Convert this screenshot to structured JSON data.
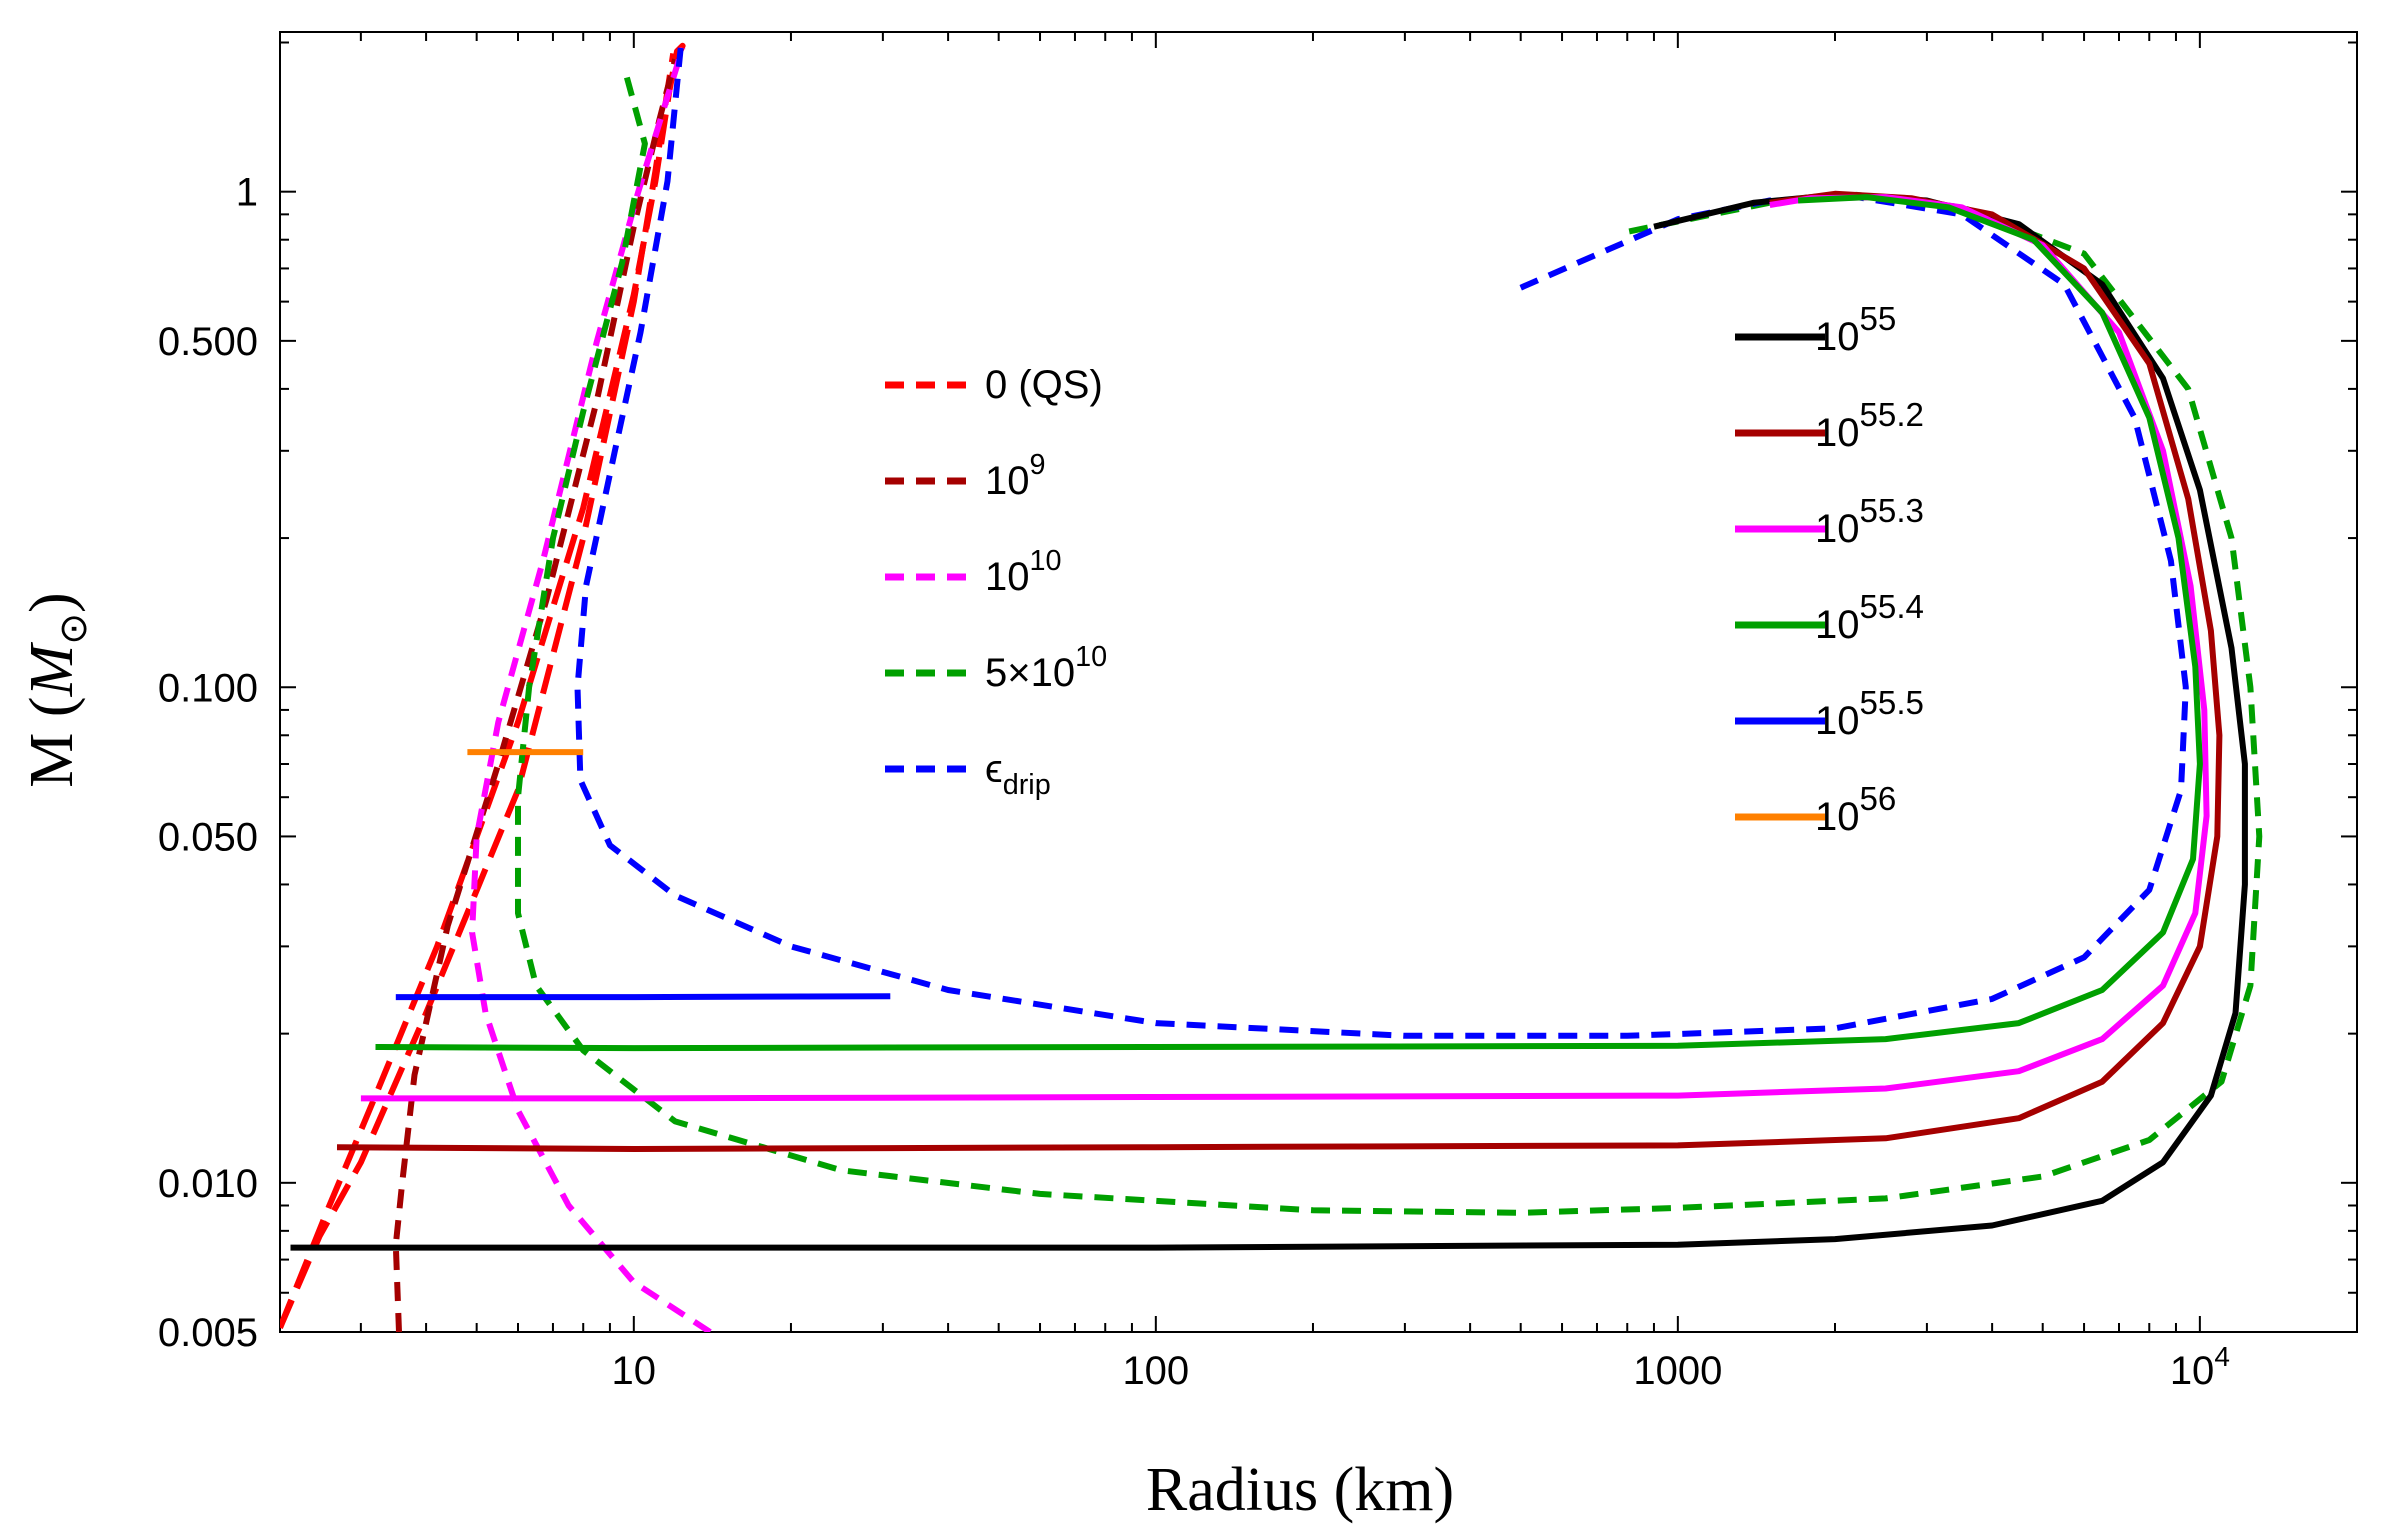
{
  "chart_data": {
    "type": "line",
    "title": "",
    "xlabel": "Radius (km)",
    "ylabel": "M",
    "ylabel_symbol": "M",
    "ylabel_subscript": "⊙",
    "xscale": "log",
    "yscale": "log",
    "xlim": [
      2.1,
      20000
    ],
    "ylim": [
      0.005,
      2.1
    ],
    "x_ticks": [
      {
        "value": 10,
        "label": "10"
      },
      {
        "value": 100,
        "label": "100"
      },
      {
        "value": 1000,
        "label": "1000"
      },
      {
        "value": 10000,
        "label_base": "10",
        "label_exp": "4"
      }
    ],
    "y_ticks": [
      {
        "value": 0.005,
        "label": "0.005"
      },
      {
        "value": 0.01,
        "label": "0.010"
      },
      {
        "value": 0.05,
        "label": "0.050"
      },
      {
        "value": 0.1,
        "label": "0.100"
      },
      {
        "value": 0.5,
        "label": "0.500"
      },
      {
        "value": 1,
        "label": "1"
      }
    ],
    "legend_left": {
      "placement": "upper-middle",
      "entries": [
        {
          "base": "0 (QS)",
          "exp": "",
          "sub": "",
          "color": "#ff0000",
          "dash": "dashed"
        },
        {
          "base": "10",
          "exp": "9",
          "sub": "",
          "color": "#a50000",
          "dash": "dashed"
        },
        {
          "base": " 10",
          "exp": "10",
          "sub": "",
          "color": "#ff00ff",
          "dash": "dashed"
        },
        {
          "base": "5×10",
          "exp": "10",
          "sub": "",
          "color": "#00a000",
          "dash": "dashed"
        },
        {
          "base": "ϵ",
          "exp": "",
          "sub": "drip",
          "color": "#0000ff",
          "dash": "dashed"
        }
      ]
    },
    "legend_right": {
      "placement": "upper-right",
      "entries": [
        {
          "base": "10",
          "exp": "55",
          "color": "#000000",
          "dash": "solid"
        },
        {
          "base": "10",
          "exp": "55.2",
          "color": "#a50000",
          "dash": "solid"
        },
        {
          "base": "10",
          "exp": "55.3",
          "color": "#ff00ff",
          "dash": "solid"
        },
        {
          "base": "10",
          "exp": "55.4",
          "color": "#00a000",
          "dash": "solid"
        },
        {
          "base": "10",
          "exp": "55.5",
          "color": "#0000ff",
          "dash": "solid"
        },
        {
          "base": "10",
          "exp": "56",
          "color": "#ff8000",
          "dash": "solid"
        }
      ]
    },
    "series": [
      {
        "name": "QS tail",
        "color": "#ff0000",
        "dash": "long",
        "points": [
          [
            2.1,
            0.0051
          ],
          [
            2.5,
            0.0078
          ],
          [
            3,
            0.011
          ],
          [
            4,
            0.022
          ],
          [
            6,
            0.062
          ],
          [
            8,
            0.2
          ],
          [
            10,
            0.6
          ],
          [
            11,
            1.1
          ],
          [
            11.6,
            1.6
          ],
          [
            11.9,
            1.9
          ]
        ]
      },
      {
        "name": "QS",
        "color": "#ff0000",
        "dash": "long",
        "points": [
          [
            2.1,
            0.0051
          ],
          [
            2.6,
            0.0089
          ],
          [
            3.2,
            0.015
          ],
          [
            4.2,
            0.03
          ],
          [
            6,
            0.085
          ],
          [
            8,
            0.23
          ],
          [
            10,
            0.62
          ],
          [
            11,
            1.05
          ],
          [
            11.7,
            1.6
          ],
          [
            12.1,
            1.92
          ],
          [
            12.4,
            1.97
          ],
          [
            12.3,
            1.93
          ]
        ]
      },
      {
        "name": "1e9",
        "color": "#a50000",
        "dash": "short",
        "points": [
          [
            3.55,
            0.005
          ],
          [
            3.5,
            0.0075
          ],
          [
            3.6,
            0.01
          ],
          [
            3.8,
            0.0165
          ],
          [
            4.4,
            0.033
          ],
          [
            5.5,
            0.07
          ],
          [
            6.8,
            0.15
          ],
          [
            8.5,
            0.38
          ],
          [
            10,
            0.85
          ],
          [
            11.2,
            1.4
          ],
          [
            12,
            1.85
          ]
        ]
      },
      {
        "name": "1e10",
        "color": "#ff00ff",
        "dash": "short",
        "points": [
          [
            14,
            0.005
          ],
          [
            10,
            0.0063
          ],
          [
            7.5,
            0.009
          ],
          [
            6,
            0.014
          ],
          [
            5.2,
            0.022
          ],
          [
            4.9,
            0.032
          ],
          [
            5,
            0.05
          ],
          [
            5.5,
            0.085
          ],
          [
            6.7,
            0.18
          ],
          [
            8.5,
            0.5
          ],
          [
            10.2,
            1.0
          ],
          [
            11.7,
            1.6
          ],
          [
            12.4,
            1.95
          ]
        ]
      },
      {
        "name": "5e10",
        "color": "#00a000",
        "dash": "short",
        "points": [
          [
            9.7,
            1.7
          ],
          [
            10.5,
            1.25
          ],
          [
            9.5,
            0.72
          ],
          [
            8,
            0.36
          ],
          [
            7,
            0.2
          ],
          [
            6.3,
            0.1
          ],
          [
            6,
            0.06
          ],
          [
            6,
            0.035
          ],
          [
            6.5,
            0.025
          ],
          [
            8,
            0.0185
          ],
          [
            12,
            0.0133
          ],
          [
            25,
            0.0106
          ],
          [
            60,
            0.0095
          ],
          [
            200,
            0.0088
          ],
          [
            500,
            0.0087
          ],
          [
            1000,
            0.0089
          ],
          [
            2500,
            0.0093
          ],
          [
            5000,
            0.0103
          ],
          [
            8000,
            0.0122
          ],
          [
            11000,
            0.016
          ],
          [
            12500,
            0.025
          ],
          [
            13000,
            0.05
          ],
          [
            12500,
            0.1
          ],
          [
            11500,
            0.2
          ],
          [
            9500,
            0.4
          ],
          [
            6000,
            0.75
          ],
          [
            3500,
            0.93
          ],
          [
            2200,
            0.985
          ],
          [
            1500,
            0.95
          ],
          [
            800,
            0.83
          ]
        ]
      },
      {
        "name": "drip",
        "color": "#0000ff",
        "dash": "short",
        "points": [
          [
            12.3,
            1.95
          ],
          [
            11.6,
            1.05
          ],
          [
            10.3,
            0.52
          ],
          [
            9.2,
            0.3
          ],
          [
            8.1,
            0.16
          ],
          [
            7.8,
            0.1
          ],
          [
            7.9,
            0.065
          ],
          [
            9,
            0.048
          ],
          [
            12,
            0.038
          ],
          [
            20,
            0.03
          ],
          [
            40,
            0.0245
          ],
          [
            100,
            0.021
          ],
          [
            300,
            0.0198
          ],
          [
            800,
            0.0198
          ],
          [
            2000,
            0.0205
          ],
          [
            4000,
            0.0235
          ],
          [
            6000,
            0.0285
          ],
          [
            8000,
            0.039
          ],
          [
            9200,
            0.062
          ],
          [
            9400,
            0.1
          ],
          [
            8800,
            0.18
          ],
          [
            7500,
            0.35
          ],
          [
            5500,
            0.65
          ],
          [
            3500,
            0.9
          ],
          [
            2200,
            0.975
          ],
          [
            1500,
            0.96
          ],
          [
            1000,
            0.88
          ],
          [
            500,
            0.64
          ]
        ]
      },
      {
        "name": "1e55",
        "color": "#000000",
        "dash": "solid",
        "points": [
          [
            2.2,
            0.0074
          ],
          [
            10,
            0.0074
          ],
          [
            100,
            0.0074
          ],
          [
            1000,
            0.0075
          ],
          [
            2000,
            0.0077
          ],
          [
            4000,
            0.0082
          ],
          [
            6500,
            0.0092
          ],
          [
            8500,
            0.011
          ],
          [
            10500,
            0.015
          ],
          [
            11700,
            0.022
          ],
          [
            12200,
            0.04
          ],
          [
            12200,
            0.07
          ],
          [
            11500,
            0.12
          ],
          [
            10000,
            0.25
          ],
          [
            8500,
            0.42
          ],
          [
            6500,
            0.65
          ],
          [
            4500,
            0.86
          ],
          [
            3000,
            0.96
          ],
          [
            2000,
            0.985
          ],
          [
            1400,
            0.95
          ],
          [
            900,
            0.85
          ]
        ]
      },
      {
        "name": "1e55.2",
        "color": "#a50000",
        "dash": "solid",
        "points": [
          [
            2.7,
            0.0118
          ],
          [
            10,
            0.0117
          ],
          [
            100,
            0.0118
          ],
          [
            1000,
            0.0119
          ],
          [
            2500,
            0.0123
          ],
          [
            4500,
            0.0135
          ],
          [
            6500,
            0.016
          ],
          [
            8500,
            0.021
          ],
          [
            10000,
            0.03
          ],
          [
            10800,
            0.05
          ],
          [
            10900,
            0.08
          ],
          [
            10500,
            0.13
          ],
          [
            9500,
            0.24
          ],
          [
            8000,
            0.45
          ],
          [
            6000,
            0.7
          ],
          [
            4000,
            0.9
          ],
          [
            2800,
            0.97
          ],
          [
            2000,
            0.99
          ],
          [
            1500,
            0.95
          ]
        ]
      },
      {
        "name": "1e55.3",
        "color": "#ff00ff",
        "dash": "solid",
        "points": [
          [
            3.0,
            0.0148
          ],
          [
            10,
            0.0148
          ],
          [
            100,
            0.0149
          ],
          [
            1000,
            0.015
          ],
          [
            2500,
            0.0155
          ],
          [
            4500,
            0.0168
          ],
          [
            6500,
            0.0195
          ],
          [
            8500,
            0.025
          ],
          [
            9800,
            0.035
          ],
          [
            10300,
            0.055
          ],
          [
            10200,
            0.09
          ],
          [
            9600,
            0.16
          ],
          [
            8500,
            0.3
          ],
          [
            7000,
            0.52
          ],
          [
            5000,
            0.78
          ],
          [
            3500,
            0.93
          ],
          [
            2500,
            0.975
          ],
          [
            1800,
            0.97
          ],
          [
            1500,
            0.94
          ]
        ]
      },
      {
        "name": "1e55.4",
        "color": "#00a000",
        "dash": "solid",
        "points": [
          [
            3.2,
            0.0188
          ],
          [
            10,
            0.0187
          ],
          [
            100,
            0.0188
          ],
          [
            1000,
            0.0189
          ],
          [
            2500,
            0.0195
          ],
          [
            4500,
            0.021
          ],
          [
            6500,
            0.0245
          ],
          [
            8500,
            0.032
          ],
          [
            9700,
            0.045
          ],
          [
            10000,
            0.07
          ],
          [
            9800,
            0.11
          ],
          [
            9100,
            0.2
          ],
          [
            8000,
            0.35
          ],
          [
            6500,
            0.57
          ],
          [
            4800,
            0.8
          ],
          [
            3300,
            0.93
          ],
          [
            2300,
            0.975
          ],
          [
            1700,
            0.96
          ]
        ]
      },
      {
        "name": "1e55.5",
        "color": "#0000ff",
        "dash": "solid",
        "points": [
          [
            3.5,
            0.0237
          ],
          [
            10,
            0.0237
          ],
          [
            31,
            0.0238
          ]
        ]
      },
      {
        "name": "1e56",
        "color": "#ff8000",
        "dash": "solid",
        "points": [
          [
            4.8,
            0.074
          ],
          [
            8,
            0.074
          ]
        ]
      }
    ]
  }
}
